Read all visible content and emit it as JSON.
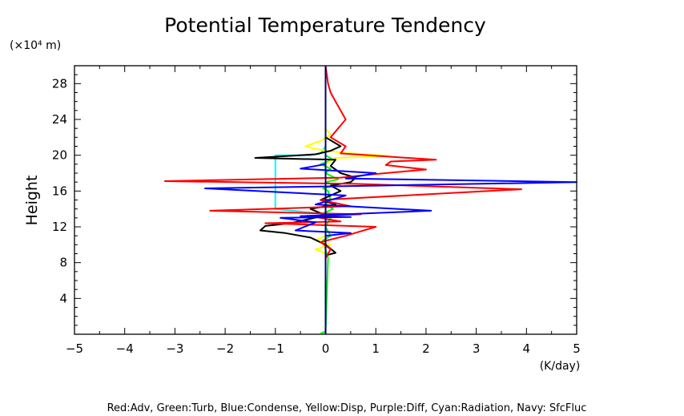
{
  "chart_data": {
    "type": "line",
    "title": "Potential Temperature Tendency",
    "xlabel": "(K/day)",
    "ylabel": "Height",
    "yunit": "(×10⁴ m)",
    "xlim": [
      -5,
      5
    ],
    "ylim": [
      0,
      30
    ],
    "xticks": [
      -5,
      -4,
      -3,
      -2,
      -1,
      0,
      1,
      2,
      3,
      4,
      5
    ],
    "yticks": [
      4,
      8,
      12,
      16,
      20,
      24,
      28
    ],
    "grid": false,
    "legend_text": "Red:Adv, Green:Turb, Blue:Condense, Yellow:Disp, Purple:Diff, Cyan:Radiation, Navy: SfcFluc",
    "series": [
      {
        "color": "#00ff00",
        "x": [
          -0.1,
          0.0,
          0.05,
          -0.05,
          0.1,
          0.0,
          0.1,
          -0.05,
          0.15,
          0.0,
          0.1,
          0.05,
          -0.05,
          0.2,
          0.0,
          0.25,
          0.0,
          0.1,
          -0.1,
          0.15,
          0.0,
          0.0,
          0.0
        ],
        "y": [
          0.1,
          0.3,
          8.5,
          10.5,
          11.0,
          12.0,
          13.0,
          13.5,
          14.0,
          14.5,
          15.0,
          16.0,
          16.3,
          16.6,
          17.0,
          17.3,
          18.0,
          18.5,
          19.0,
          19.5,
          20.0,
          25.0,
          30.0
        ]
      },
      {
        "color": "#00ffff",
        "x": [
          0.0,
          0.0,
          -0.1,
          -1.0,
          -1.0,
          -0.3,
          -0.1,
          0.0,
          0.0
        ],
        "y": [
          0.0,
          13.0,
          13.5,
          14.0,
          20.0,
          20.0,
          20.2,
          21.0,
          30.0
        ]
      },
      {
        "color": "#ffff00",
        "x": [
          0.0,
          0.0,
          -0.2,
          0.1,
          -0.2,
          0.0,
          0.0,
          0.0,
          0.2,
          1.3,
          0.3,
          -0.2,
          -0.4,
          -0.1,
          0.1,
          0.0,
          0.0
        ],
        "y": [
          0.0,
          9.0,
          9.5,
          10.0,
          10.5,
          11.0,
          14.0,
          19.0,
          19.7,
          19.9,
          20.3,
          20.7,
          21.0,
          21.6,
          22.3,
          23.0,
          30.0
        ]
      },
      {
        "color": "#000000",
        "x": [
          0.0,
          0.0,
          0.2,
          0.0,
          -0.3,
          -0.8,
          -1.3,
          -1.2,
          -0.7,
          -0.3,
          0.0,
          -0.3,
          0.2,
          -0.1,
          0.3,
          0.1,
          0.5,
          0.6,
          0.3,
          0.1,
          0.2,
          -1.4,
          -0.2,
          0.1,
          0.3,
          0.0,
          0.0,
          0.0
        ],
        "y": [
          0.0,
          8.8,
          9.1,
          10.0,
          10.8,
          11.3,
          11.6,
          12.1,
          12.4,
          12.9,
          13.3,
          14.0,
          14.5,
          15.0,
          16.0,
          16.6,
          17.0,
          17.5,
          18.0,
          18.8,
          19.5,
          19.7,
          20.1,
          20.5,
          21.0,
          22.0,
          25.0,
          30.0
        ]
      },
      {
        "color": "#ff0000",
        "x": [
          0.0,
          0.0,
          0.1,
          -0.1,
          0.4,
          0.7,
          1.0,
          -1.2,
          0.3,
          -0.3,
          0.7,
          -2.3,
          0.5,
          -0.1,
          3.9,
          0.6,
          -3.2,
          0.3,
          1.0,
          2.0,
          1.2,
          1.3,
          2.2,
          0.3,
          0.4,
          0.1,
          0.4,
          0.2,
          0.1,
          0.05,
          0.0
        ],
        "y": [
          0.0,
          8.5,
          9.5,
          10.3,
          11.0,
          11.5,
          12.0,
          12.4,
          12.6,
          13.2,
          13.4,
          13.8,
          14.3,
          15.0,
          16.2,
          16.8,
          17.1,
          17.5,
          17.9,
          18.4,
          18.9,
          19.3,
          19.5,
          20.2,
          21.0,
          22.0,
          24.0,
          26.0,
          27.0,
          28.0,
          30.0
        ]
      },
      {
        "color": "#0000ff",
        "x": [
          0.0,
          0.0,
          0.5,
          -0.6,
          -0.2,
          -0.9,
          0.5,
          -0.5,
          2.1,
          -0.2,
          0.4,
          -2.4,
          1.0,
          5.0,
          0.4,
          1.0,
          -0.5,
          0.0,
          0.0,
          0.0
        ],
        "y": [
          0.0,
          11.0,
          11.3,
          11.6,
          12.5,
          13.0,
          13.1,
          13.2,
          13.8,
          14.5,
          15.5,
          16.3,
          16.6,
          17.0,
          17.4,
          18.0,
          18.5,
          19.0,
          25.0,
          30.0
        ]
      },
      {
        "color": "#00007f",
        "x": [
          0.0,
          0.0
        ],
        "y": [
          0.0,
          30.0
        ]
      }
    ]
  }
}
